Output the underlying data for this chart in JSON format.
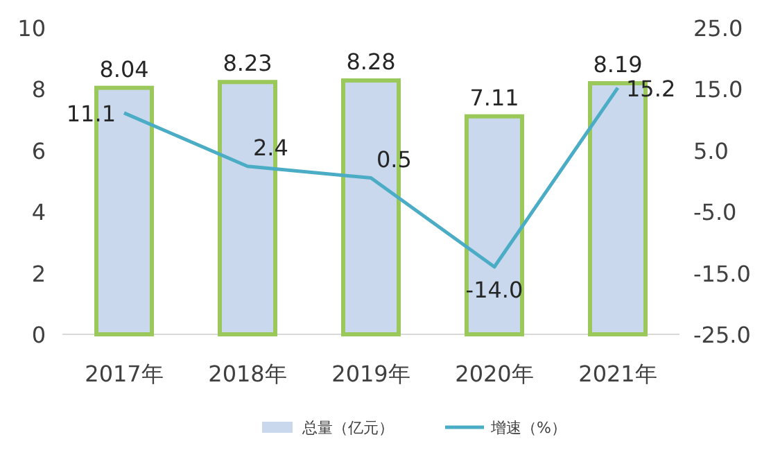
{
  "chart_data": {
    "type": "bar",
    "categories": [
      "2017年",
      "2018年",
      "2019年",
      "2020年",
      "2021年"
    ],
    "series": [
      {
        "name": "总量（亿元）",
        "color": "#c9d8ec",
        "values": [
          8.04,
          8.23,
          8.28,
          7.11,
          8.19
        ],
        "value_labels": [
          "8.04",
          "8.23",
          "8.28",
          "7.11",
          "8.19"
        ]
      },
      {
        "name": "增速（%）",
        "type": "line",
        "axis": "y2",
        "color": "#4bacc6",
        "values": [
          11.1,
          2.4,
          0.5,
          -14.0,
          15.2
        ],
        "value_labels": [
          "11.1",
          "2.4",
          "0.5",
          "-14.0",
          "15.2"
        ]
      }
    ],
    "ylim": [
      0,
      10
    ],
    "yticks": [
      0,
      2,
      4,
      6,
      8,
      10
    ],
    "y2lim": [
      -25,
      25
    ],
    "y2ticks": [
      {
        "value": -25,
        "label": "-25.0"
      },
      {
        "value": -15,
        "label": "-15.0"
      },
      {
        "value": -5,
        "label": "-5.0"
      },
      {
        "value": 5,
        "label": "5.0"
      },
      {
        "value": 15,
        "label": "15.0"
      },
      {
        "value": 25,
        "label": "25.0"
      }
    ],
    "grid": false,
    "legend": "bottom"
  }
}
